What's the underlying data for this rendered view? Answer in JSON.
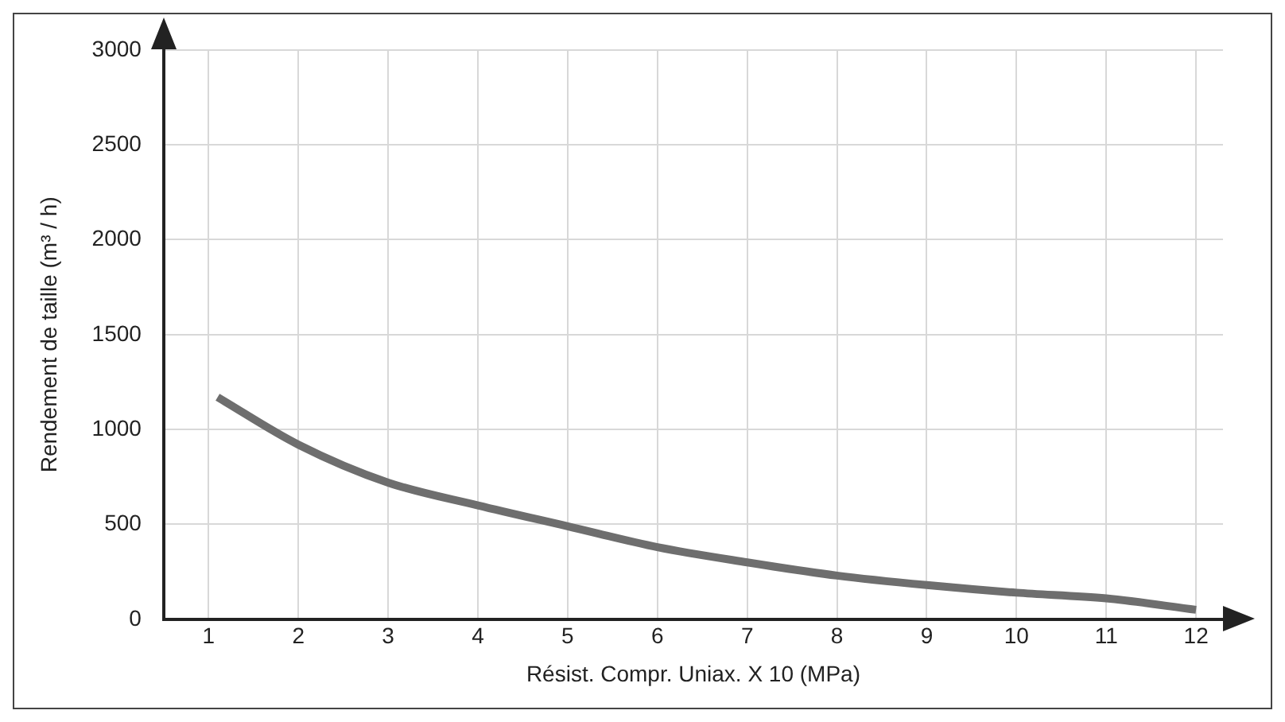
{
  "chart_data": {
    "type": "line",
    "xlabel": "Résist. Compr. Uniax. X 10 (MPa)",
    "ylabel": "Rendement de taille (m³ / h)",
    "x": [
      1.1,
      2,
      3,
      4,
      5,
      6,
      7,
      8,
      9,
      10,
      11,
      12
    ],
    "series": [
      {
        "color": "#6e6e6e",
        "values": [
          1170,
          920,
          720,
          600,
          490,
          380,
          300,
          230,
          180,
          140,
          110,
          50
        ]
      }
    ],
    "xlim": [
      0.5,
      12.3
    ],
    "ylim": [
      0,
      3000
    ],
    "xticks": [
      1,
      2,
      3,
      4,
      5,
      6,
      7,
      8,
      9,
      10,
      11,
      12
    ],
    "yticks": [
      0,
      500,
      1000,
      1500,
      2000,
      2500,
      3000
    ],
    "grid": true,
    "legend": false,
    "marker": "none",
    "line_style": "solid"
  }
}
